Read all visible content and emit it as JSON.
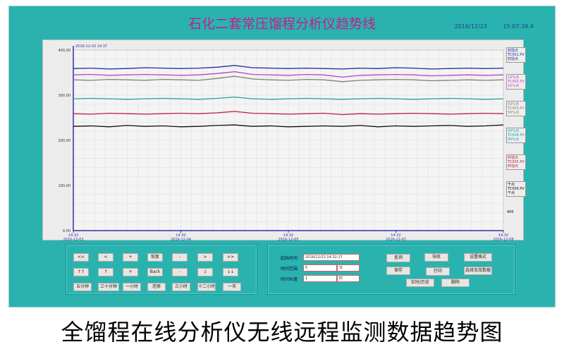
{
  "title": "石化二套常压馏程分析仪趋势线",
  "date": "2016/12/23",
  "time": "15:07:39.4",
  "caption": "全馏程在线分析仪无线远程监测数据趋势图",
  "chart_data": {
    "type": "line",
    "cursor_time": "2016-12-03 14:37",
    "ylim": [
      0,
      400
    ],
    "yticks": [
      "0.00",
      "100.00",
      "200.00",
      "300.00",
      "400.00"
    ],
    "xticks": [
      {
        "t": "14:32",
        "d": "2016-12-03"
      },
      {
        "t": "14:32",
        "d": "2016-12-04"
      },
      {
        "t": "14:32",
        "d": "2016-12-05"
      },
      {
        "t": "14:32",
        "d": "2016-12-07"
      },
      {
        "t": "14:32",
        "d": "2016-12-08"
      }
    ],
    "grid": true,
    "series": [
      {
        "color": "#2a2a9a",
        "values": [
          359,
          360,
          358,
          359,
          361,
          360,
          359,
          360,
          362,
          366,
          361,
          360,
          359,
          360,
          359,
          358,
          360,
          359,
          361,
          360,
          358,
          359,
          360,
          359,
          360
        ]
      },
      {
        "color": "#c040c0",
        "values": [
          345,
          346,
          344,
          345,
          346,
          345,
          344,
          345,
          348,
          352,
          346,
          345,
          344,
          346,
          345,
          340,
          344,
          345,
          346,
          345,
          343,
          344,
          345,
          344,
          345
        ]
      },
      {
        "color": "#808070",
        "values": [
          334,
          333,
          335,
          334,
          333,
          335,
          334,
          333,
          337,
          342,
          336,
          334,
          333,
          335,
          334,
          330,
          333,
          334,
          335,
          334,
          332,
          333,
          334,
          333,
          334
        ]
      },
      {
        "color": "#20a0a0",
        "values": [
          292,
          293,
          292,
          291,
          292,
          293,
          292,
          291,
          293,
          296,
          292,
          291,
          292,
          293,
          292,
          291,
          292,
          293,
          292,
          291,
          292,
          293,
          292,
          291,
          292
        ]
      },
      {
        "color": "#c02040",
        "values": [
          259,
          258,
          260,
          259,
          258,
          259,
          260,
          259,
          261,
          264,
          260,
          259,
          258,
          259,
          260,
          257,
          259,
          258,
          259,
          260,
          259,
          258,
          259,
          260,
          259
        ]
      },
      {
        "color": "#101010",
        "values": [
          231,
          232,
          230,
          233,
          231,
          232,
          230,
          231,
          233,
          234,
          231,
          232,
          230,
          231,
          232,
          231,
          233,
          230,
          232,
          231,
          232,
          233,
          231,
          232,
          234
        ]
      }
    ],
    "legend": [
      {
        "color": "#2a2a9a",
        "lines": [
          "初馏点",
          "TC001.PV",
          "初馏点"
        ]
      },
      {
        "color": "#c040c0",
        "lines": [
          "10%点",
          "TC002.PV",
          "10%点"
        ]
      },
      {
        "color": "#808070",
        "lines": [
          "50%点",
          "TC003.PV",
          "50%点"
        ]
      },
      {
        "color": "#20a0a0",
        "lines": [
          "90%点",
          "TC004.PV",
          "90%点"
        ]
      },
      {
        "color": "#c02040",
        "lines": [
          "终馏点",
          "TC005.PV",
          "终馏点"
        ]
      },
      {
        "color": "#101010",
        "lines": [
          "干点",
          "TC006.PV",
          "干点"
        ]
      }
    ],
    "legend_footer": "400"
  },
  "nav_buttons": [
    "<<",
    "<",
    "+",
    "恢复",
    "-",
    ">",
    ">>",
    "↑↑",
    "↑",
    "+",
    "Back",
    "-",
    "↓",
    "↓↓",
    "五分钟",
    "三十分钟",
    "一小时",
    "还原",
    "三小时",
    "十二小时",
    "一天"
  ],
  "query": {
    "start_label": "起始时间",
    "start_value": "2016/12/23  14:32:27",
    "range_label": "时间范围",
    "range_value": "5",
    "range_unit": "日",
    "length_label": "时间长度",
    "length_value": "1",
    "length_unit": "时",
    "buttons": [
      "查询",
      "导航",
      "设置格式",
      "保存",
      "打印",
      "选择无效数据",
      "实时/历史",
      "删除"
    ]
  }
}
